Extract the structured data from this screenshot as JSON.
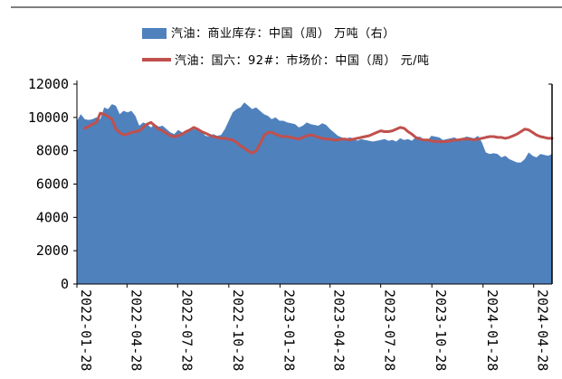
{
  "chart_data": {
    "type": "area+line",
    "legend": [
      {
        "label": "汽油：商业库存：中国（周） 万吨（右）",
        "color": "#4f81bd",
        "kind": "area"
      },
      {
        "label": "汽油：国六：92#：市场价：中国（周） 元/吨",
        "color": "#c0504d",
        "kind": "line"
      }
    ],
    "y_left": {
      "min": 0,
      "max": 12000,
      "ticks": [
        0,
        2000,
        4000,
        6000,
        8000,
        10000,
        12000
      ]
    },
    "x_ticks": [
      "2022-01-28",
      "2022-04-28",
      "2022-07-28",
      "2022-10-28",
      "2023-01-28",
      "2023-04-28",
      "2023-07-28",
      "2023-10-28",
      "2024-01-28",
      "2024-04-28"
    ],
    "x_range": [
      "2022-01-28",
      "2024-05-31"
    ],
    "grid": false,
    "legend_position": "top",
    "series": [
      {
        "name": "汽油：商业库存：中国（周） 万吨（右）",
        "kind": "area",
        "color": "#4f81bd",
        "points": [
          [
            "2022-01-28",
            9800
          ],
          [
            "2022-02-04",
            10200
          ],
          [
            "2022-02-11",
            9900
          ],
          [
            "2022-02-18",
            9850
          ],
          [
            "2022-02-25",
            9900
          ],
          [
            "2022-03-04",
            10000
          ],
          [
            "2022-03-11",
            9900
          ],
          [
            "2022-03-18",
            10600
          ],
          [
            "2022-03-25",
            10500
          ],
          [
            "2022-04-01",
            10800
          ],
          [
            "2022-04-08",
            10700
          ],
          [
            "2022-04-15",
            10200
          ],
          [
            "2022-04-22",
            10400
          ],
          [
            "2022-04-29",
            10300
          ],
          [
            "2022-05-06",
            10400
          ],
          [
            "2022-05-13",
            10100
          ],
          [
            "2022-05-20",
            9500
          ],
          [
            "2022-05-27",
            9700
          ],
          [
            "2022-06-03",
            9600
          ],
          [
            "2022-06-10",
            9400
          ],
          [
            "2022-06-17",
            9600
          ],
          [
            "2022-06-24",
            9450
          ],
          [
            "2022-07-01",
            9500
          ],
          [
            "2022-07-08",
            9300
          ],
          [
            "2022-07-15",
            9100
          ],
          [
            "2022-07-22",
            9000
          ],
          [
            "2022-07-29",
            9250
          ],
          [
            "2022-08-05",
            9100
          ],
          [
            "2022-08-12",
            9050
          ],
          [
            "2022-08-19",
            9200
          ],
          [
            "2022-08-26",
            9300
          ],
          [
            "2022-09-02",
            9250
          ],
          [
            "2022-09-09",
            9150
          ],
          [
            "2022-09-16",
            8900
          ],
          [
            "2022-09-23",
            8850
          ],
          [
            "2022-09-30",
            9000
          ],
          [
            "2022-10-07",
            8900
          ],
          [
            "2022-10-14",
            8950
          ],
          [
            "2022-10-21",
            9300
          ],
          [
            "2022-10-28",
            9800
          ],
          [
            "2022-11-04",
            10300
          ],
          [
            "2022-11-11",
            10500
          ],
          [
            "2022-11-18",
            10600
          ],
          [
            "2022-11-25",
            10900
          ],
          [
            "2022-12-02",
            10700
          ],
          [
            "2022-12-09",
            10500
          ],
          [
            "2022-12-16",
            10600
          ],
          [
            "2022-12-23",
            10400
          ],
          [
            "2022-12-30",
            10200
          ],
          [
            "2023-01-06",
            10100
          ],
          [
            "2023-01-13",
            9900
          ],
          [
            "2023-01-20",
            10000
          ],
          [
            "2023-01-27",
            9800
          ],
          [
            "2023-02-03",
            9800
          ],
          [
            "2023-02-10",
            9700
          ],
          [
            "2023-02-17",
            9650
          ],
          [
            "2023-02-24",
            9600
          ],
          [
            "2023-03-03",
            9400
          ],
          [
            "2023-03-10",
            9500
          ],
          [
            "2023-03-17",
            9700
          ],
          [
            "2023-03-24",
            9600
          ],
          [
            "2023-03-31",
            9550
          ],
          [
            "2023-04-07",
            9500
          ],
          [
            "2023-04-14",
            9650
          ],
          [
            "2023-04-21",
            9550
          ],
          [
            "2023-04-28",
            9300
          ],
          [
            "2023-05-05",
            9100
          ],
          [
            "2023-05-12",
            8900
          ],
          [
            "2023-05-19",
            8800
          ],
          [
            "2023-05-26",
            8700
          ],
          [
            "2023-06-02",
            8800
          ],
          [
            "2023-06-09",
            8750
          ],
          [
            "2023-06-16",
            8600
          ],
          [
            "2023-06-23",
            8700
          ],
          [
            "2023-06-30",
            8650
          ],
          [
            "2023-07-07",
            8600
          ],
          [
            "2023-07-14",
            8550
          ],
          [
            "2023-07-21",
            8600
          ],
          [
            "2023-07-28",
            8650
          ],
          [
            "2023-08-04",
            8700
          ],
          [
            "2023-08-11",
            8600
          ],
          [
            "2023-08-18",
            8650
          ],
          [
            "2023-08-25",
            8550
          ],
          [
            "2023-09-01",
            8750
          ],
          [
            "2023-09-08",
            8650
          ],
          [
            "2023-09-15",
            8700
          ],
          [
            "2023-09-22",
            8600
          ],
          [
            "2023-09-29",
            8800
          ],
          [
            "2023-10-06",
            8850
          ],
          [
            "2023-10-13",
            8700
          ],
          [
            "2023-10-20",
            8600
          ],
          [
            "2023-10-27",
            8900
          ],
          [
            "2023-11-03",
            8850
          ],
          [
            "2023-11-10",
            8800
          ],
          [
            "2023-11-17",
            8650
          ],
          [
            "2023-11-24",
            8700
          ],
          [
            "2023-12-01",
            8750
          ],
          [
            "2023-12-08",
            8800
          ],
          [
            "2023-12-15",
            8650
          ],
          [
            "2023-12-22",
            8750
          ],
          [
            "2023-12-29",
            8850
          ],
          [
            "2024-01-05",
            8800
          ],
          [
            "2024-01-12",
            8750
          ],
          [
            "2024-01-19",
            8900
          ],
          [
            "2024-01-26",
            8500
          ],
          [
            "2024-02-02",
            7900
          ],
          [
            "2024-02-09",
            7800
          ],
          [
            "2024-02-16",
            7850
          ],
          [
            "2024-02-23",
            7800
          ],
          [
            "2024-03-01",
            7600
          ],
          [
            "2024-03-08",
            7700
          ],
          [
            "2024-03-15",
            7500
          ],
          [
            "2024-03-22",
            7400
          ],
          [
            "2024-03-29",
            7300
          ],
          [
            "2024-04-05",
            7300
          ],
          [
            "2024-04-12",
            7500
          ],
          [
            "2024-04-19",
            7900
          ],
          [
            "2024-04-26",
            7700
          ],
          [
            "2024-05-03",
            7600
          ],
          [
            "2024-05-10",
            7800
          ],
          [
            "2024-05-17",
            7750
          ],
          [
            "2024-05-24",
            7700
          ],
          [
            "2024-05-31",
            7800
          ]
        ]
      },
      {
        "name": "汽油：国六：92#：市场价：中国（周） 元/吨",
        "kind": "line",
        "color": "#c0504d",
        "points": [
          [
            "2022-02-11",
            9350
          ],
          [
            "2022-02-18",
            9450
          ],
          [
            "2022-02-25",
            9600
          ],
          [
            "2022-03-04",
            9700
          ],
          [
            "2022-03-11",
            10250
          ],
          [
            "2022-03-18",
            10200
          ],
          [
            "2022-03-25",
            10050
          ],
          [
            "2022-04-01",
            9900
          ],
          [
            "2022-04-08",
            9300
          ],
          [
            "2022-04-15",
            9100
          ],
          [
            "2022-04-22",
            8950
          ],
          [
            "2022-04-29",
            9000
          ],
          [
            "2022-05-06",
            9100
          ],
          [
            "2022-05-13",
            9150
          ],
          [
            "2022-05-20",
            9200
          ],
          [
            "2022-05-27",
            9400
          ],
          [
            "2022-06-03",
            9600
          ],
          [
            "2022-06-10",
            9700
          ],
          [
            "2022-06-17",
            9500
          ],
          [
            "2022-06-24",
            9300
          ],
          [
            "2022-07-01",
            9200
          ],
          [
            "2022-07-08",
            9050
          ],
          [
            "2022-07-15",
            8900
          ],
          [
            "2022-07-22",
            8850
          ],
          [
            "2022-07-29",
            8900
          ],
          [
            "2022-08-05",
            9000
          ],
          [
            "2022-08-12",
            9150
          ],
          [
            "2022-08-19",
            9250
          ],
          [
            "2022-08-26",
            9400
          ],
          [
            "2022-09-02",
            9300
          ],
          [
            "2022-09-09",
            9150
          ],
          [
            "2022-09-16",
            9050
          ],
          [
            "2022-09-23",
            8950
          ],
          [
            "2022-09-30",
            8850
          ],
          [
            "2022-10-07",
            8800
          ],
          [
            "2022-10-14",
            8750
          ],
          [
            "2022-10-21",
            8750
          ],
          [
            "2022-10-28",
            8700
          ],
          [
            "2022-11-04",
            8650
          ],
          [
            "2022-11-11",
            8500
          ],
          [
            "2022-11-18",
            8300
          ],
          [
            "2022-11-25",
            8150
          ],
          [
            "2022-12-02",
            8000
          ],
          [
            "2022-12-09",
            7850
          ],
          [
            "2022-12-16",
            8000
          ],
          [
            "2022-12-23",
            8400
          ],
          [
            "2022-12-30",
            8900
          ],
          [
            "2023-01-06",
            9100
          ],
          [
            "2023-01-13",
            9100
          ],
          [
            "2023-01-20",
            9000
          ],
          [
            "2023-01-27",
            8900
          ],
          [
            "2023-02-03",
            8850
          ],
          [
            "2023-02-10",
            8850
          ],
          [
            "2023-02-17",
            8800
          ],
          [
            "2023-02-24",
            8750
          ],
          [
            "2023-03-03",
            8700
          ],
          [
            "2023-03-10",
            8800
          ],
          [
            "2023-03-17",
            8900
          ],
          [
            "2023-03-24",
            8950
          ],
          [
            "2023-03-31",
            8900
          ],
          [
            "2023-04-07",
            8800
          ],
          [
            "2023-04-14",
            8750
          ],
          [
            "2023-04-21",
            8700
          ],
          [
            "2023-04-28",
            8700
          ],
          [
            "2023-05-05",
            8650
          ],
          [
            "2023-05-12",
            8650
          ],
          [
            "2023-05-19",
            8700
          ],
          [
            "2023-05-26",
            8700
          ],
          [
            "2023-06-02",
            8650
          ],
          [
            "2023-06-09",
            8700
          ],
          [
            "2023-06-16",
            8750
          ],
          [
            "2023-06-23",
            8800
          ],
          [
            "2023-06-30",
            8850
          ],
          [
            "2023-07-07",
            8900
          ],
          [
            "2023-07-14",
            9000
          ],
          [
            "2023-07-21",
            9100
          ],
          [
            "2023-07-28",
            9200
          ],
          [
            "2023-08-04",
            9150
          ],
          [
            "2023-08-11",
            9150
          ],
          [
            "2023-08-18",
            9200
          ],
          [
            "2023-08-25",
            9300
          ],
          [
            "2023-09-01",
            9400
          ],
          [
            "2023-09-08",
            9350
          ],
          [
            "2023-09-15",
            9150
          ],
          [
            "2023-09-22",
            9000
          ],
          [
            "2023-09-29",
            8800
          ],
          [
            "2023-10-06",
            8700
          ],
          [
            "2023-10-13",
            8650
          ],
          [
            "2023-10-20",
            8650
          ],
          [
            "2023-10-27",
            8600
          ],
          [
            "2023-11-03",
            8550
          ],
          [
            "2023-11-10",
            8550
          ],
          [
            "2023-11-17",
            8550
          ],
          [
            "2023-11-24",
            8550
          ],
          [
            "2023-12-01",
            8600
          ],
          [
            "2023-12-08",
            8650
          ],
          [
            "2023-12-15",
            8650
          ],
          [
            "2023-12-22",
            8700
          ],
          [
            "2023-12-29",
            8700
          ],
          [
            "2024-01-05",
            8700
          ],
          [
            "2024-01-12",
            8650
          ],
          [
            "2024-01-19",
            8700
          ],
          [
            "2024-01-26",
            8750
          ],
          [
            "2024-02-02",
            8800
          ],
          [
            "2024-02-09",
            8850
          ],
          [
            "2024-02-16",
            8850
          ],
          [
            "2024-02-23",
            8800
          ],
          [
            "2024-03-01",
            8800
          ],
          [
            "2024-03-08",
            8750
          ],
          [
            "2024-03-15",
            8800
          ],
          [
            "2024-03-22",
            8900
          ],
          [
            "2024-03-29",
            9000
          ],
          [
            "2024-04-05",
            9150
          ],
          [
            "2024-04-12",
            9300
          ],
          [
            "2024-04-19",
            9250
          ],
          [
            "2024-04-26",
            9100
          ],
          [
            "2024-05-03",
            8950
          ],
          [
            "2024-05-10",
            8850
          ],
          [
            "2024-05-17",
            8800
          ],
          [
            "2024-05-24",
            8750
          ],
          [
            "2024-05-31",
            8750
          ]
        ]
      }
    ]
  }
}
